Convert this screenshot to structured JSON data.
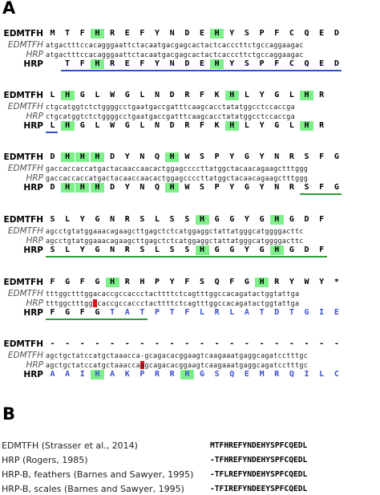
{
  "panel_a_label": "A",
  "panel_b_label": "B",
  "labels": {
    "edm": "EDMTFH",
    "edm_dna": "EDMTFH",
    "hrp_dna": "HRP",
    "hrp": "HRP"
  },
  "blocks": [
    {
      "edm_aa": [
        "M",
        "T",
        "F",
        "H",
        "R",
        "E",
        "F",
        "Y",
        "N",
        "D",
        "E",
        "H",
        "Y",
        "S",
        "P",
        "F",
        "C",
        "Q",
        "E",
        "D"
      ],
      "edm_marks": [
        3,
        11
      ],
      "edm_dna": "atgactttccacagggaattctacaatgacgagcactactcacccttctgccaggaagac",
      "hrp_dna": "atgactttccacagggaattctacaatgacgagcactactcacccttctgccaggaagac",
      "hrp_aa": [
        "",
        "T",
        "F",
        "H",
        "R",
        "E",
        "F",
        "Y",
        "N",
        "D",
        "E",
        "H",
        "Y",
        "S",
        "P",
        "F",
        "C",
        "Q",
        "E",
        "D"
      ],
      "hrp_marks": [
        3,
        11
      ],
      "hrp_blue": [],
      "red_edm": [],
      "red_hrp": [],
      "lines": [
        {
          "color": "blue",
          "from": 1,
          "to": 19
        }
      ]
    },
    {
      "edm_aa": [
        "L",
        "H",
        "G",
        "L",
        "W",
        "G",
        "L",
        "N",
        "D",
        "R",
        "F",
        "K",
        "H",
        "L",
        "Y",
        "G",
        "L",
        "H",
        "R"
      ],
      "edm_marks": [
        1,
        12,
        17
      ],
      "edm_dna": "ctgcatggtctctggggcctgaatgaccgatttcaagcacctatatggcctccaccga",
      "hrp_dna": "ctgcatggtctctggggcctgaatgaccgatttcaagcacctatatggcctccaccga",
      "hrp_aa": [
        "L",
        "H",
        "G",
        "L",
        "W",
        "G",
        "L",
        "N",
        "D",
        "R",
        "F",
        "K",
        "H",
        "L",
        "Y",
        "G",
        "L",
        "H",
        "R"
      ],
      "hrp_marks": [
        1,
        12,
        17
      ],
      "hrp_blue": [],
      "red_edm": [],
      "red_hrp": [],
      "lines": [
        {
          "color": "blue",
          "from": 0,
          "to": 0
        }
      ]
    },
    {
      "edm_aa": [
        "D",
        "H",
        "H",
        "H",
        "D",
        "Y",
        "N",
        "Q",
        "H",
        "W",
        "S",
        "P",
        "Y",
        "G",
        "Y",
        "N",
        "R",
        "S",
        "F",
        "G"
      ],
      "edm_marks": [
        1,
        2,
        3,
        8
      ],
      "edm_dna": "gaccaccaccatgactacaaccaacactggagccccttatggctacaacagaagctttggg",
      "hrp_dna": "gaccaccaccatgactacaaccaacactggagccccttatggctacaacagaagctttggg",
      "hrp_aa": [
        "D",
        "H",
        "H",
        "H",
        "D",
        "Y",
        "N",
        "Q",
        "H",
        "W",
        "S",
        "P",
        "Y",
        "G",
        "Y",
        "N",
        "R",
        "S",
        "F",
        "G"
      ],
      "hrp_marks": [
        1,
        2,
        3,
        8
      ],
      "hrp_blue": [],
      "red_edm": [],
      "red_hrp": [],
      "lines": [
        {
          "color": "green",
          "from": 17,
          "to": 19
        }
      ]
    },
    {
      "edm_aa": [
        "S",
        "L",
        "Y",
        "G",
        "N",
        "R",
        "S",
        "L",
        "S",
        "S",
        "H",
        "G",
        "G",
        "Y",
        "G",
        "H",
        "G",
        "D",
        "F"
      ],
      "edm_marks": [
        10,
        15
      ],
      "edm_dna": "agcctgtatggaaacagaagcttgagctctcatggaggctattatgggcatggggacttc",
      "hrp_dna": "agcctgtatggaaacagaagcttgagctctcatggaggctattatgggcatggggacttc",
      "hrp_aa": [
        "S",
        "L",
        "Y",
        "G",
        "N",
        "R",
        "S",
        "L",
        "S",
        "S",
        "H",
        "G",
        "G",
        "Y",
        "G",
        "H",
        "G",
        "D",
        "F"
      ],
      "hrp_marks": [
        10,
        15
      ],
      "hrp_blue": [],
      "red_edm": [],
      "red_hrp": [],
      "lines": [
        {
          "color": "green",
          "from": 0,
          "to": 18
        }
      ]
    },
    {
      "edm_aa": [
        "F",
        "G",
        "F",
        "G",
        "H",
        "R",
        "H",
        "P",
        "Y",
        "F",
        "S",
        "Q",
        "F",
        "G",
        "H",
        "R",
        "Y",
        "W",
        "Y",
        "*"
      ],
      "edm_marks": [
        4,
        14
      ],
      "edm_dna": "tttggctttggacaccgccaccctacttttctcagtttggccacagatactggtattga",
      "hrp_dna": "tttggctttgg caccgccaccctacttttctcagtttggccacagatactggtattga",
      "hrp_aa": [
        "F",
        "G",
        "F",
        "G",
        "T",
        "A",
        "T",
        "P",
        "T",
        "F",
        "L",
        "R",
        "L",
        "A",
        "T",
        "D",
        "T",
        "G",
        "I",
        "E"
      ],
      "hrp_marks": [],
      "hrp_blue": [
        4,
        5,
        6,
        7,
        8,
        9,
        10,
        11,
        12,
        13,
        14,
        15,
        16,
        17,
        18,
        19
      ],
      "red_edm": [],
      "red_hrp": [
        11
      ],
      "lines": [
        {
          "color": "green",
          "from": 0,
          "to": 6
        }
      ]
    },
    {
      "edm_aa": [
        "-",
        "-",
        "-",
        "-",
        "-",
        "-",
        "-",
        "-",
        "-",
        "-",
        "-",
        "-",
        "-",
        "-",
        "-",
        "-",
        "-",
        "-",
        "-",
        "-"
      ],
      "edm_marks": [],
      "edm_dna": "agctgctatccatgctaaacca-gcagacacggaagtcaagaaatgaggcagatcctttgc",
      "hrp_dna": "agctgctatccatgctaaaccaagcagacacggaagtcaagaaatgaggcagatcctttgc",
      "hrp_aa": [
        "A",
        "A",
        "I",
        "H",
        "A",
        "K",
        "P",
        "R",
        "R",
        "H",
        "G",
        "S",
        "Q",
        "E",
        "M",
        "R",
        "Q",
        "I",
        "L",
        "C"
      ],
      "hrp_marks": [
        3,
        9
      ],
      "hrp_blue": [
        0,
        1,
        2,
        3,
        4,
        5,
        6,
        7,
        8,
        9,
        10,
        11,
        12,
        13,
        14,
        15,
        16,
        17,
        18,
        19
      ],
      "red_edm": [],
      "red_hrp": [
        22
      ],
      "lines": []
    }
  ],
  "references": [
    {
      "name": "EDMTFH (Strasser et al., 2014)",
      "seq": "MTFHREFYNDEHYSPFCQEDL"
    },
    {
      "name": "HRP (Rogers, 1985)",
      "seq": "-TFHREFYNDEHYSPFCQEDL"
    },
    {
      "name": "HRP-B, feathers (Barnes and Sawyer, 1995)",
      "seq": "-TFLREFYNDEHYSPFCQEDL"
    },
    {
      "name": "HRP-B, scales (Barnes and Sawyer, 1995)",
      "seq": "-TFIREFYNDEEYSPFCQEDL"
    }
  ],
  "colors": {
    "highlight": "#7df08a",
    "deletion": "#e0101a",
    "blue_text": "#3a4fd0",
    "blue_line": "#3050c8",
    "green_line": "#2e9e3a"
  }
}
